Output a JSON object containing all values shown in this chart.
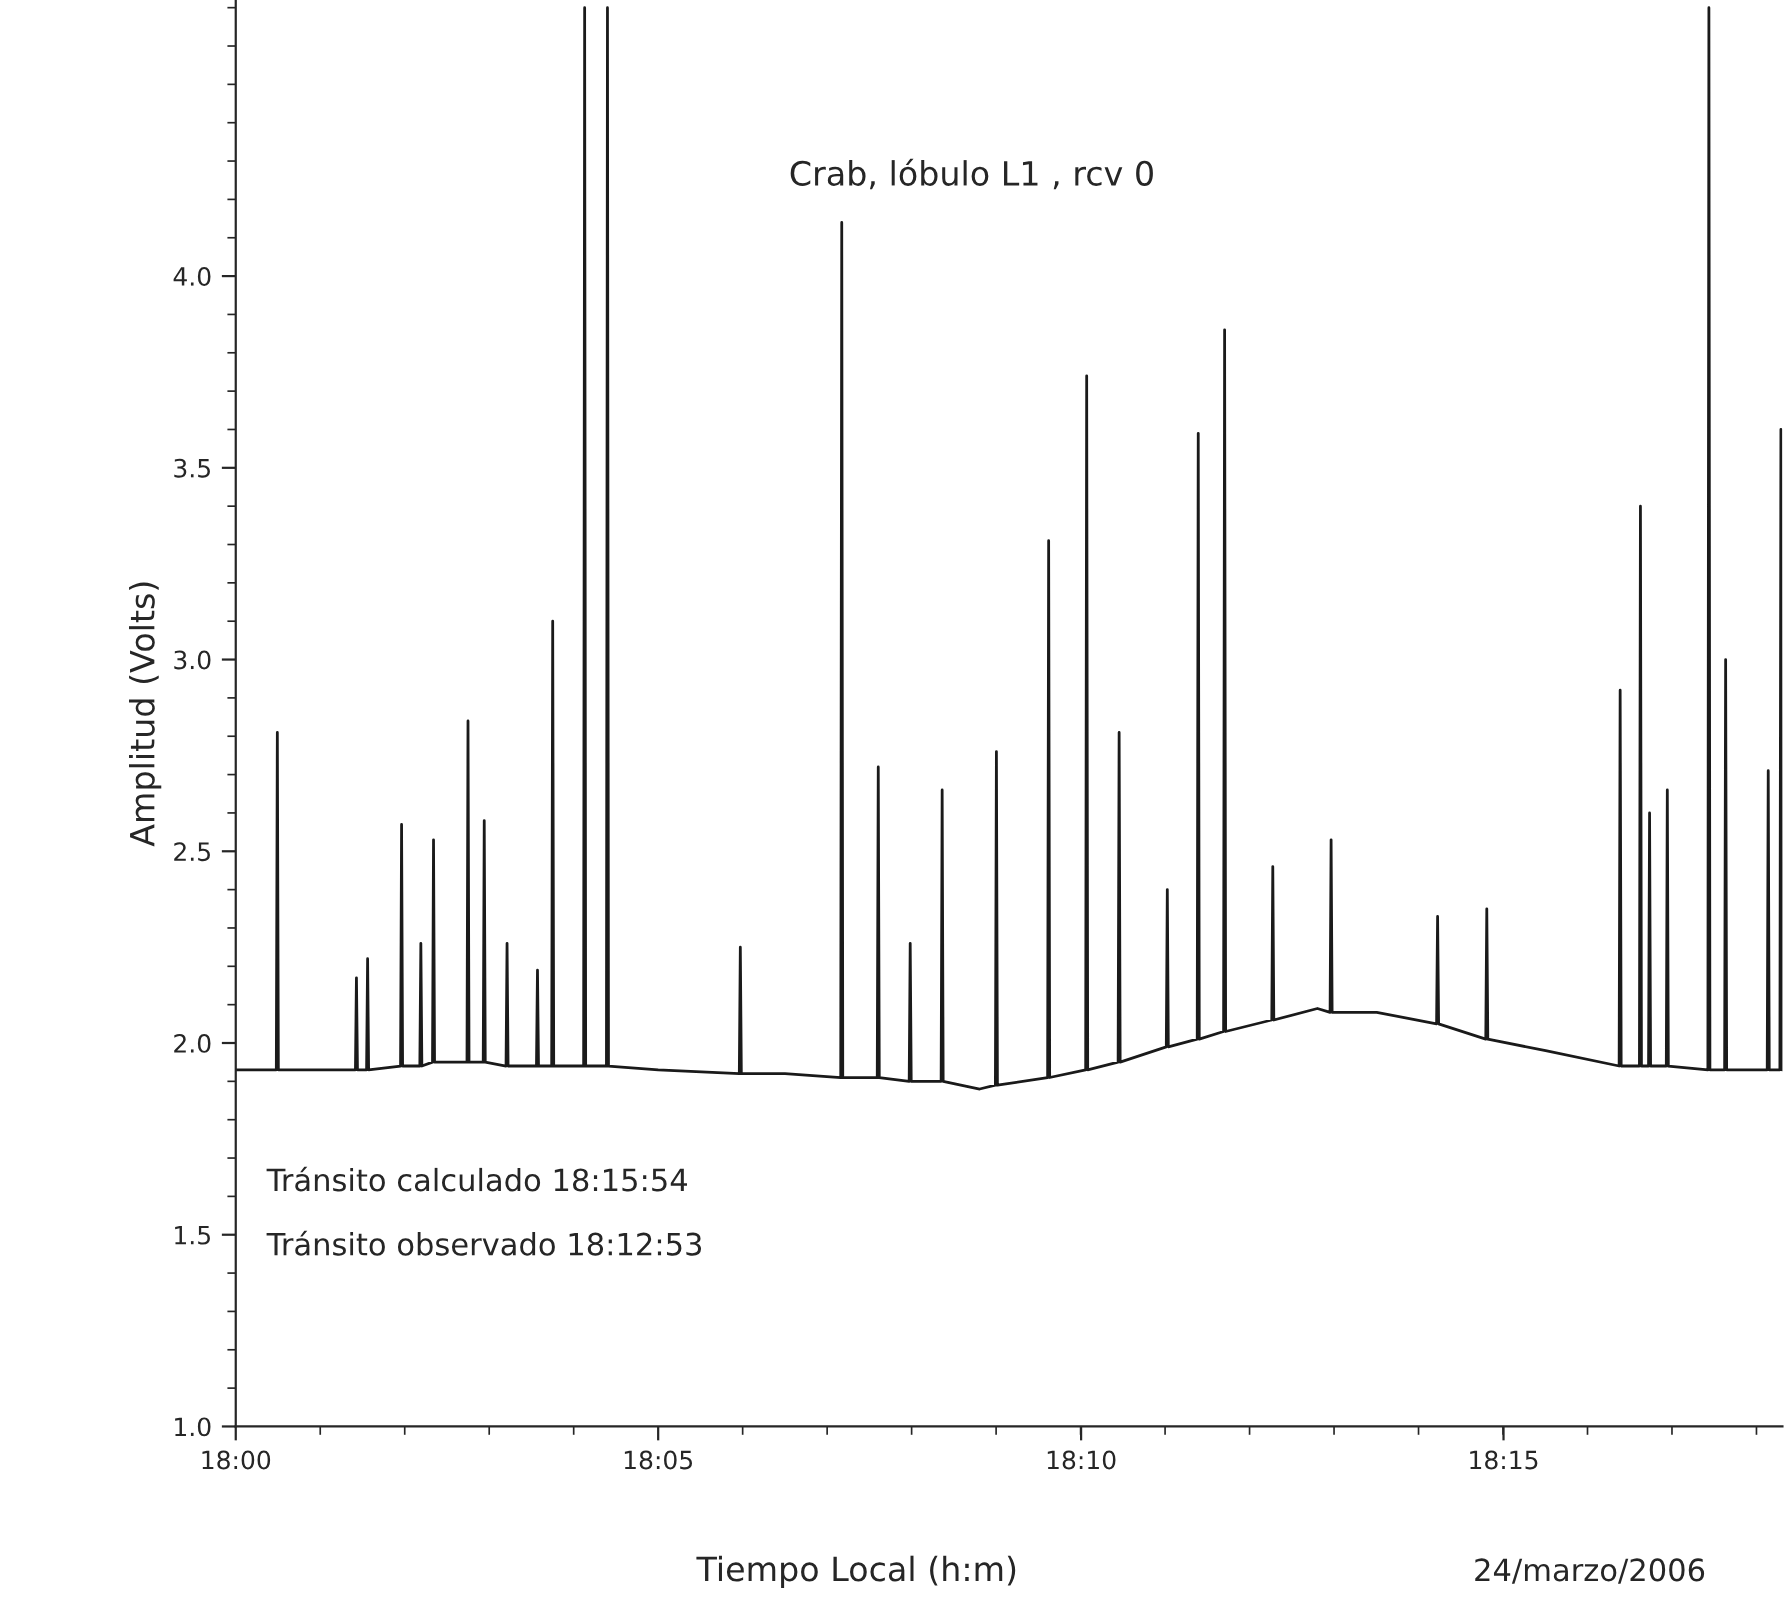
{
  "chart_data": {
    "type": "line",
    "title": "Crab, lóbulo L1 , rcv 0",
    "xlabel": "Tiempo Local (h:m)",
    "ylabel": "Amplitud (Volts)",
    "annotations": [
      "Tránsito calculado 18:15:54",
      "Tránsito observado 18:12:53",
      "24/marzo/2006"
    ],
    "series": [
      {
        "color": "#1a1a1a",
        "x": [
          18.0,
          18.008,
          18.0082,
          18.0084,
          18.0236,
          18.0238,
          18.024,
          18.0258,
          18.026,
          18.0262,
          18.0325,
          18.0327,
          18.0329,
          18.0363,
          18.0365,
          18.0367,
          18.0388,
          18.039,
          18.0392,
          18.0456,
          18.0458,
          18.046,
          18.0488,
          18.049,
          18.0492,
          18.0533,
          18.0535,
          18.0537,
          18.0593,
          18.0595,
          18.0597,
          18.0623,
          18.0625,
          18.0627,
          18.0686,
          18.0688,
          18.069,
          18.0731,
          18.0733,
          18.0735,
          18.0833,
          18.0993,
          18.0995,
          18.0997,
          18.1083,
          18.1193,
          18.1195,
          18.1197,
          18.1265,
          18.1267,
          18.1269,
          18.1328,
          18.133,
          18.1332,
          18.1391,
          18.1393,
          18.1395,
          18.1467,
          18.1498,
          18.15,
          18.1502,
          18.1601,
          18.1603,
          18.1605,
          18.1676,
          18.1678,
          18.168,
          18.174,
          18.1742,
          18.1744,
          18.1835,
          18.1837,
          18.1839,
          18.1896,
          18.1898,
          18.19,
          18.1948,
          18.195,
          18.1952,
          18.2043,
          18.2045,
          18.2047,
          18.2133,
          18.2158,
          18.216,
          18.2162,
          18.225,
          18.2368,
          18.237,
          18.2372,
          18.2465,
          18.2467,
          18.2469,
          18.2583,
          18.2728,
          18.273,
          18.2732,
          18.2768,
          18.277,
          18.2772,
          18.2786,
          18.2788,
          18.279,
          18.2821,
          18.2823,
          18.2825,
          18.2903,
          18.2905,
          18.2907,
          18.2936,
          18.2938,
          18.294,
          18.302,
          18.3022,
          18.3024,
          18.3045,
          18.3047,
          18.3049,
          18.305
        ],
        "values": [
          1.93,
          1.93,
          2.81,
          1.93,
          1.93,
          2.17,
          1.93,
          1.93,
          2.22,
          1.93,
          1.94,
          2.57,
          1.94,
          1.94,
          2.26,
          1.94,
          1.95,
          2.53,
          1.95,
          1.95,
          2.84,
          1.95,
          1.95,
          2.58,
          1.95,
          1.94,
          2.26,
          1.94,
          1.94,
          2.19,
          1.94,
          1.94,
          3.1,
          1.94,
          1.94,
          4.7,
          1.94,
          1.94,
          4.7,
          1.94,
          1.93,
          1.92,
          2.25,
          1.92,
          1.92,
          1.91,
          4.14,
          1.91,
          1.91,
          2.72,
          1.91,
          1.9,
          2.26,
          1.9,
          1.9,
          2.66,
          1.9,
          1.88,
          1.89,
          2.76,
          1.89,
          1.91,
          3.31,
          1.91,
          1.93,
          3.74,
          1.93,
          1.95,
          2.81,
          1.95,
          1.99,
          2.4,
          1.99,
          2.01,
          3.59,
          2.01,
          2.03,
          3.86,
          2.03,
          2.06,
          2.46,
          2.06,
          2.09,
          2.08,
          2.53,
          2.08,
          2.08,
          2.05,
          2.33,
          2.05,
          2.01,
          2.35,
          2.01,
          1.98,
          1.94,
          2.92,
          1.94,
          1.94,
          3.4,
          1.94,
          1.94,
          2.6,
          1.94,
          1.94,
          2.66,
          1.94,
          1.93,
          4.7,
          1.93,
          1.93,
          3.0,
          1.93,
          1.93,
          2.71,
          1.93,
          1.93,
          3.6,
          1.93,
          1.93
        ]
      }
    ],
    "xlim": [
      18.0,
      18.305
    ],
    "ylim": [
      1.0,
      4.72
    ],
    "xticks": [
      {
        "value": 18.0,
        "label": "18:00"
      },
      {
        "value": 18.0833,
        "label": "18:05"
      },
      {
        "value": 18.1667,
        "label": "18:10"
      },
      {
        "value": 18.25,
        "label": "18:15"
      }
    ],
    "yticks": [
      {
        "value": 1,
        "label": "1.0"
      },
      1.5,
      {
        "value": 2,
        "label": "2.0"
      },
      2.5,
      {
        "value": 3,
        "label": "3.0"
      },
      3.5,
      {
        "value": 4,
        "label": "4.0"
      }
    ],
    "grid": false,
    "legend": false,
    "marker": "none",
    "line_style": "solid"
  }
}
